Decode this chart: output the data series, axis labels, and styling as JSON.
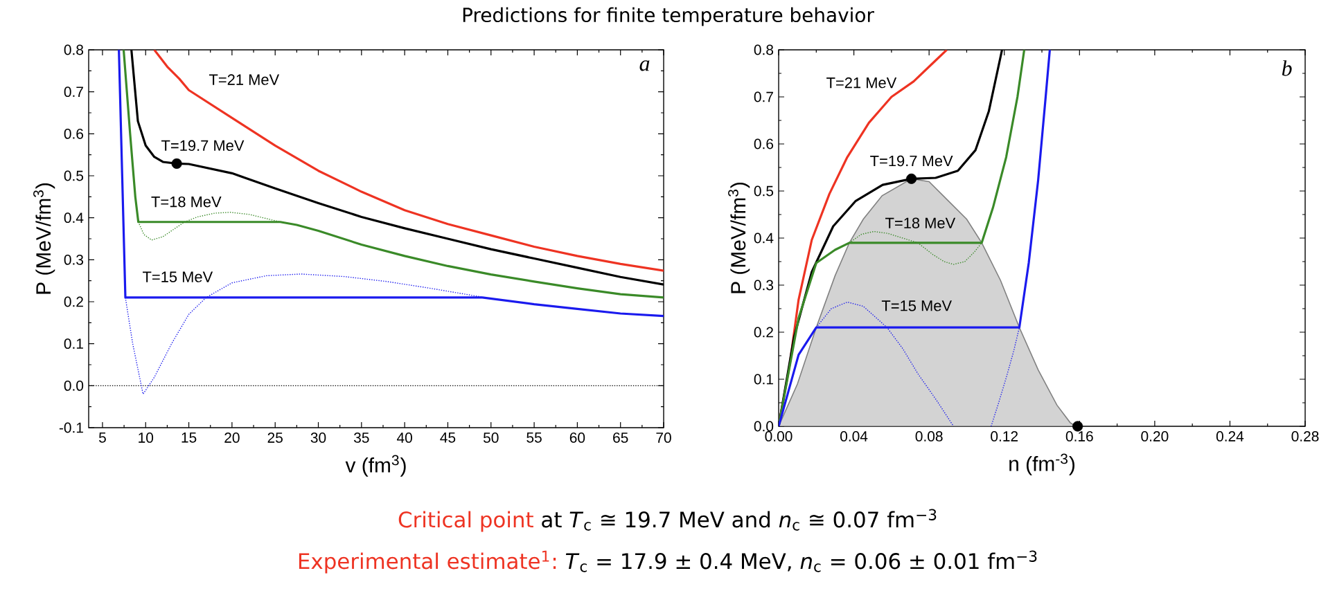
{
  "chart_data": [
    {
      "type": "line",
      "title": "Predictions for finite temperature behavior",
      "xlabel": "v (fm$^{3}$)",
      "ylabel": "P (MeV/fm$^{3}$)",
      "xlim": [
        3.4,
        70
      ],
      "ylim": [
        -0.1,
        0.8
      ],
      "xticks": [
        5,
        10,
        15,
        20,
        25,
        30,
        35,
        40,
        45,
        50,
        55,
        60,
        65,
        70
      ],
      "yticks": [
        -0.1,
        {
          "value": 0,
          "label": "0.0"
        },
        0.1,
        0.2,
        0.3,
        0.4,
        0.5,
        0.6,
        0.7,
        0.8
      ],
      "ref_lines": [
        {
          "axis": "y",
          "value": 0,
          "color": "#000000",
          "line_style": "dotted"
        }
      ],
      "annotations": [
        "a",
        "Critical point",
        "at *T*$_{c}$ ≅ 19.7 MeV and *n*$_{c}$ ≅ 0.07 fm$^{−3}$",
        "Experimental estimate$^{1}$:",
        "*T*$_{c}$ = 17.9 ± 0.4 MeV, *n*$_{c}$ = 0.06 ± 0.01 fm$^{−3}$"
      ],
      "series": [
        {
          "name": "T=21 MeV",
          "color": "#ee3322",
          "line_style": "solid",
          "x": [
            11,
            12.5,
            13.9,
            15,
            20,
            25,
            30,
            35,
            40,
            45,
            50,
            55,
            60,
            65,
            70
          ],
          "values": [
            0.8,
            0.76,
            0.731,
            0.704,
            0.638,
            0.572,
            0.512,
            0.462,
            0.418,
            0.385,
            0.358,
            0.331,
            0.309,
            0.29,
            0.274
          ]
        },
        {
          "name": "T=19.7 MeV",
          "color": "#000000",
          "line_style": "solid",
          "x": [
            8.35,
            9.1,
            10,
            11,
            12,
            13.6,
            15,
            20,
            25,
            30,
            35,
            40,
            45,
            50,
            55,
            60,
            65,
            70
          ],
          "values": [
            0.8,
            0.63,
            0.572,
            0.545,
            0.533,
            0.529,
            0.528,
            0.506,
            0.47,
            0.435,
            0.402,
            0.375,
            0.35,
            0.325,
            0.303,
            0.281,
            0.259,
            0.241
          ]
        },
        {
          "name": "T=18 MeV",
          "color": "#3a8a28",
          "line_style": "solid",
          "x": [
            7.45,
            8.2,
            8.8,
            9.15,
            25.6,
            27.5,
            30,
            35,
            40,
            45,
            50,
            55,
            60,
            65,
            70
          ],
          "values": [
            0.8,
            0.6,
            0.45,
            0.39,
            0.39,
            0.383,
            0.369,
            0.336,
            0.309,
            0.285,
            0.265,
            0.248,
            0.232,
            0.218,
            0.21
          ]
        },
        {
          "color": "#3a8a28",
          "line_style": "dotted",
          "x": [
            9.15,
            9.8,
            10.7,
            12,
            13.5,
            14.5,
            16,
            18,
            19.8,
            22,
            24,
            25.6
          ],
          "values": [
            0.39,
            0.36,
            0.347,
            0.355,
            0.376,
            0.39,
            0.402,
            0.411,
            0.413,
            0.408,
            0.398,
            0.39
          ]
        },
        {
          "name": "T=15 MeV",
          "color": "#1a1aee",
          "line_style": "solid",
          "x": [
            6.9,
            7.65,
            49,
            55,
            60,
            65,
            70
          ],
          "values": [
            0.8,
            0.21,
            0.21,
            0.194,
            0.183,
            0.172,
            0.166
          ]
        },
        {
          "color": "#1a1aee",
          "line_style": "dotted",
          "x": [
            7.65,
            8.5,
            9.7,
            11,
            13,
            15,
            17,
            20,
            24,
            28,
            33,
            38,
            43,
            49
          ],
          "values": [
            0.21,
            0.1,
            -0.02,
            0.02,
            0.1,
            0.17,
            0.21,
            0.245,
            0.262,
            0.266,
            0.26,
            0.248,
            0.232,
            0.211
          ]
        },
        {
          "type": "scatter",
          "color": "#000000",
          "x": [
            13.6
          ],
          "values": [
            0.529
          ]
        }
      ]
    },
    {
      "type": "line",
      "xlabel": "n (fm$^{-3}$)",
      "ylabel": "P (MeV/fm$^{3}$)",
      "xlim": [
        0,
        0.28
      ],
      "ylim": [
        0,
        0.8
      ],
      "xticks": [
        {
          "value": 0,
          "label": "0.00"
        },
        {
          "value": 0.04,
          "label": "0.04"
        },
        {
          "value": 0.08,
          "label": "0.08"
        },
        {
          "value": 0.12,
          "label": "0.12"
        },
        {
          "value": 0.16,
          "label": "0.16"
        },
        {
          "value": 0.2,
          "label": "0.20"
        },
        {
          "value": 0.24,
          "label": "0.24"
        },
        {
          "value": 0.28,
          "label": "0.28"
        }
      ],
      "yticks": [
        {
          "value": 0,
          "label": "0.0"
        },
        0.1,
        0.2,
        0.3,
        0.4,
        0.5,
        0.6,
        0.7,
        0.8
      ],
      "annotations": [
        "b"
      ],
      "series": [
        {
          "type": "area",
          "color": "#d3d3d3",
          "x": [
            0,
            0.01,
            0.02,
            0.03,
            0.0376,
            0.045,
            0.055,
            0.0706,
            0.08,
            0.09,
            0.1,
            0.108,
            0.118,
            0.128,
            0.138,
            0.148,
            0.155,
            0.158
          ],
          "values": [
            0,
            0.09,
            0.21,
            0.32,
            0.39,
            0.44,
            0.49,
            0.526,
            0.52,
            0.48,
            0.44,
            0.39,
            0.31,
            0.21,
            0.12,
            0.045,
            0.008,
            0
          ]
        },
        {
          "name": "T=21 MeV",
          "color": "#ee3322",
          "line_style": "solid",
          "x": [
            0,
            0.0059,
            0.0106,
            0.0176,
            0.027,
            0.0365,
            0.048,
            0.06,
            0.0718,
            0.081,
            0.0894
          ],
          "values": [
            0,
            0.132,
            0.269,
            0.396,
            0.494,
            0.572,
            0.645,
            0.7,
            0.733,
            0.768,
            0.8
          ]
        },
        {
          "name": "T=19.7 MeV",
          "color": "#000000",
          "line_style": "solid",
          "x": [
            0,
            0.0082,
            0.0176,
            0.029,
            0.041,
            0.0553,
            0.0706,
            0.0835,
            0.0953,
            0.1047,
            0.1118,
            0.1188
          ],
          "values": [
            0,
            0.19,
            0.328,
            0.425,
            0.479,
            0.513,
            0.526,
            0.528,
            0.543,
            0.587,
            0.67,
            0.8
          ]
        },
        {
          "name": "T=18 MeV",
          "color": "#3a8a28",
          "line_style": "solid",
          "x": [
            0,
            0.0106,
            0.02,
            0.03,
            0.0376,
            0.108,
            0.114,
            0.121,
            0.127,
            0.1306
          ],
          "values": [
            0,
            0.23,
            0.347,
            0.375,
            0.39,
            0.39,
            0.465,
            0.572,
            0.7,
            0.8
          ]
        },
        {
          "color": "#3a8a28",
          "line_style": "dotted",
          "x": [
            0.0376,
            0.044,
            0.0506,
            0.058,
            0.066,
            0.074,
            0.082,
            0.088,
            0.093,
            0.099,
            0.104,
            0.108
          ],
          "values": [
            0.39,
            0.408,
            0.414,
            0.41,
            0.4,
            0.39,
            0.365,
            0.35,
            0.344,
            0.35,
            0.37,
            0.39
          ]
        },
        {
          "name": "T=15 MeV",
          "color": "#1a1aee",
          "line_style": "solid",
          "x": [
            0,
            0.0106,
            0.02,
            0.128,
            0.133,
            0.138,
            0.142,
            0.1442
          ],
          "values": [
            0,
            0.152,
            0.21,
            0.21,
            0.347,
            0.523,
            0.7,
            0.8
          ]
        },
        {
          "color": "#1a1aee",
          "line_style": "dotted",
          "x": [
            0.02,
            0.028,
            0.0365,
            0.045,
            0.0576,
            0.066,
            0.074,
            0.084,
            0.093,
            0.103,
            0.113,
            0.117,
            0.121,
            0.125,
            0.128
          ],
          "values": [
            0.21,
            0.25,
            0.264,
            0.255,
            0.21,
            0.165,
            0.112,
            0.055,
            0,
            null,
            0,
            0.05,
            0.103,
            0.16,
            0.21
          ]
        },
        {
          "type": "scatter",
          "color": "#000000",
          "x": [
            0.0706
          ],
          "values": [
            0.526
          ]
        },
        {
          "type": "scatter",
          "color": "#000000",
          "x": [
            0.159
          ],
          "values": [
            0
          ]
        }
      ]
    }
  ]
}
